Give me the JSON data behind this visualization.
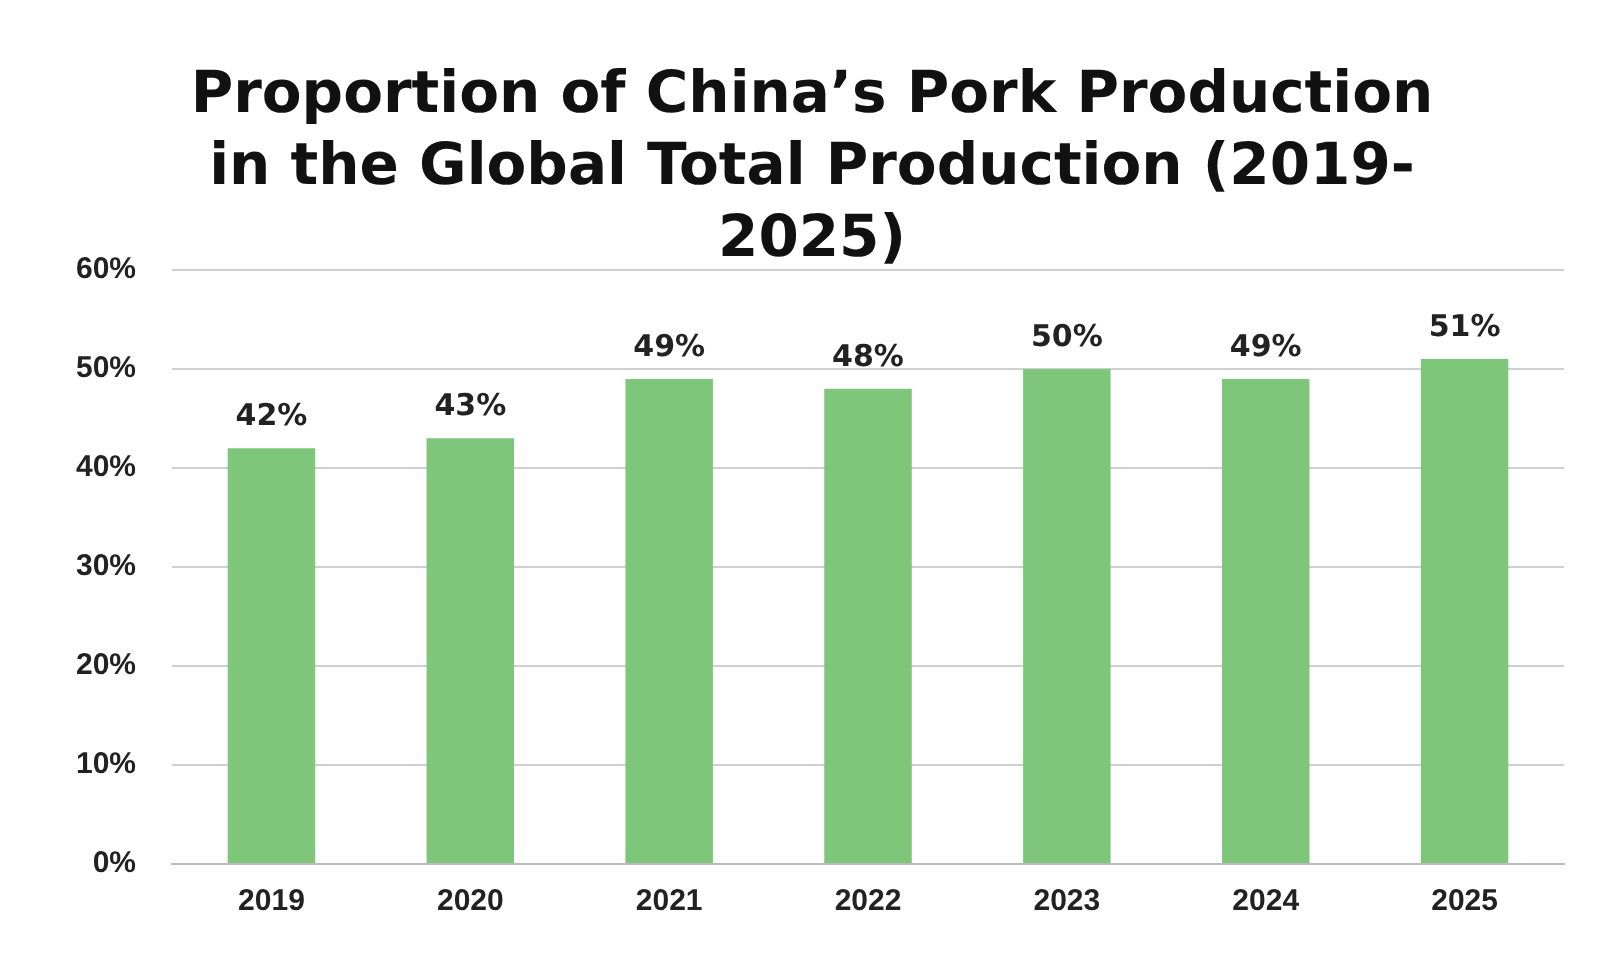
{
  "chart_data": {
    "type": "bar",
    "title": "Proportion of China’s Pork Production in the Global Total Production (2019-2025)",
    "categories": [
      "2019",
      "2020",
      "2021",
      "2022",
      "2023",
      "2024",
      "2025"
    ],
    "values": [
      42,
      43,
      49,
      48,
      50,
      49,
      51
    ],
    "value_labels": [
      "42%",
      "43%",
      "49%",
      "48%",
      "50%",
      "49%",
      "51%"
    ],
    "color": "#7dc67a",
    "ylim": [
      0,
      60
    ],
    "yticks": [
      {
        "value": 0,
        "label": "0%"
      },
      {
        "value": 10,
        "label": "10%"
      },
      {
        "value": 20,
        "label": "20%"
      },
      {
        "value": 30,
        "label": "30%"
      },
      {
        "value": 40,
        "label": "40%"
      },
      {
        "value": 50,
        "label": "50%"
      },
      {
        "value": 60,
        "label": "60%"
      }
    ],
    "grid": "y"
  }
}
